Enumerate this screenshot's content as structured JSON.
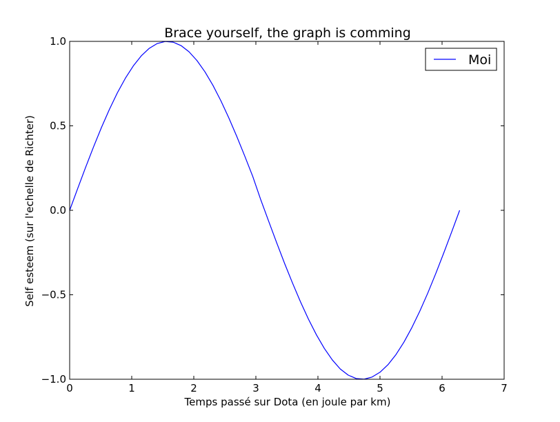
{
  "chart_data": {
    "type": "line",
    "title": "Brace yourself, the graph is comming",
    "xlabel": "Temps passé sur Dota (en joule par km)",
    "ylabel": "Self esteem (sur l'echelle de Richter)",
    "xlim": [
      0,
      7
    ],
    "ylim": [
      -1.0,
      1.0
    ],
    "xticks": [
      0,
      1,
      2,
      3,
      4,
      5,
      6,
      7
    ],
    "xtick_labels": [
      "0",
      "1",
      "2",
      "3",
      "4",
      "5",
      "6",
      "7"
    ],
    "yticks": [
      -1.0,
      -0.5,
      0.0,
      0.5,
      1.0
    ],
    "ytick_labels": [
      "−1.0",
      "−0.5",
      "0.0",
      "0.5",
      "1.0"
    ],
    "grid": false,
    "legend_position": "top-right",
    "series": [
      {
        "name": "Moi",
        "color": "#0000ff",
        "x": [
          0.0,
          0.1282,
          0.2565,
          0.3847,
          0.5129,
          0.6411,
          0.7694,
          0.8976,
          1.0258,
          1.154,
          1.2823,
          1.4105,
          1.5387,
          1.6669,
          1.7952,
          1.9234,
          2.0516,
          2.1799,
          2.3081,
          2.4363,
          2.5645,
          2.6928,
          2.821,
          2.9492,
          3.0774,
          3.2057,
          3.3339,
          3.4621,
          3.5903,
          3.7186,
          3.8468,
          3.975,
          4.1033,
          4.2315,
          4.3597,
          4.4879,
          4.6162,
          4.7444,
          4.8726,
          5.0008,
          5.1291,
          5.2573,
          5.3855,
          5.5137,
          5.642,
          5.7702,
          5.8984,
          6.0266,
          6.1549,
          6.2832
        ],
        "y": [
          0.0,
          0.1279,
          0.2537,
          0.3753,
          0.4907,
          0.598,
          0.6959,
          0.7817,
          0.855,
          0.9144,
          0.9587,
          0.9871,
          0.9995,
          0.9954,
          0.9749,
          0.9382,
          0.8862,
          0.8197,
          0.74,
          0.6485,
          0.547,
          0.4372,
          0.3212,
          0.2012,
          0.0641,
          -0.0641,
          -0.1906,
          -0.3137,
          -0.4304,
          -0.5412,
          -0.6438,
          -0.7365,
          -0.8175,
          -0.8854,
          -0.9392,
          -0.9755,
          -0.9957,
          -0.9995,
          -0.9868,
          -0.9582,
          -0.9137,
          -0.854,
          -0.7803,
          -0.6941,
          -0.5966,
          -0.4895,
          -0.3743,
          -0.2531,
          -0.1277,
          0.0
        ]
      }
    ]
  }
}
